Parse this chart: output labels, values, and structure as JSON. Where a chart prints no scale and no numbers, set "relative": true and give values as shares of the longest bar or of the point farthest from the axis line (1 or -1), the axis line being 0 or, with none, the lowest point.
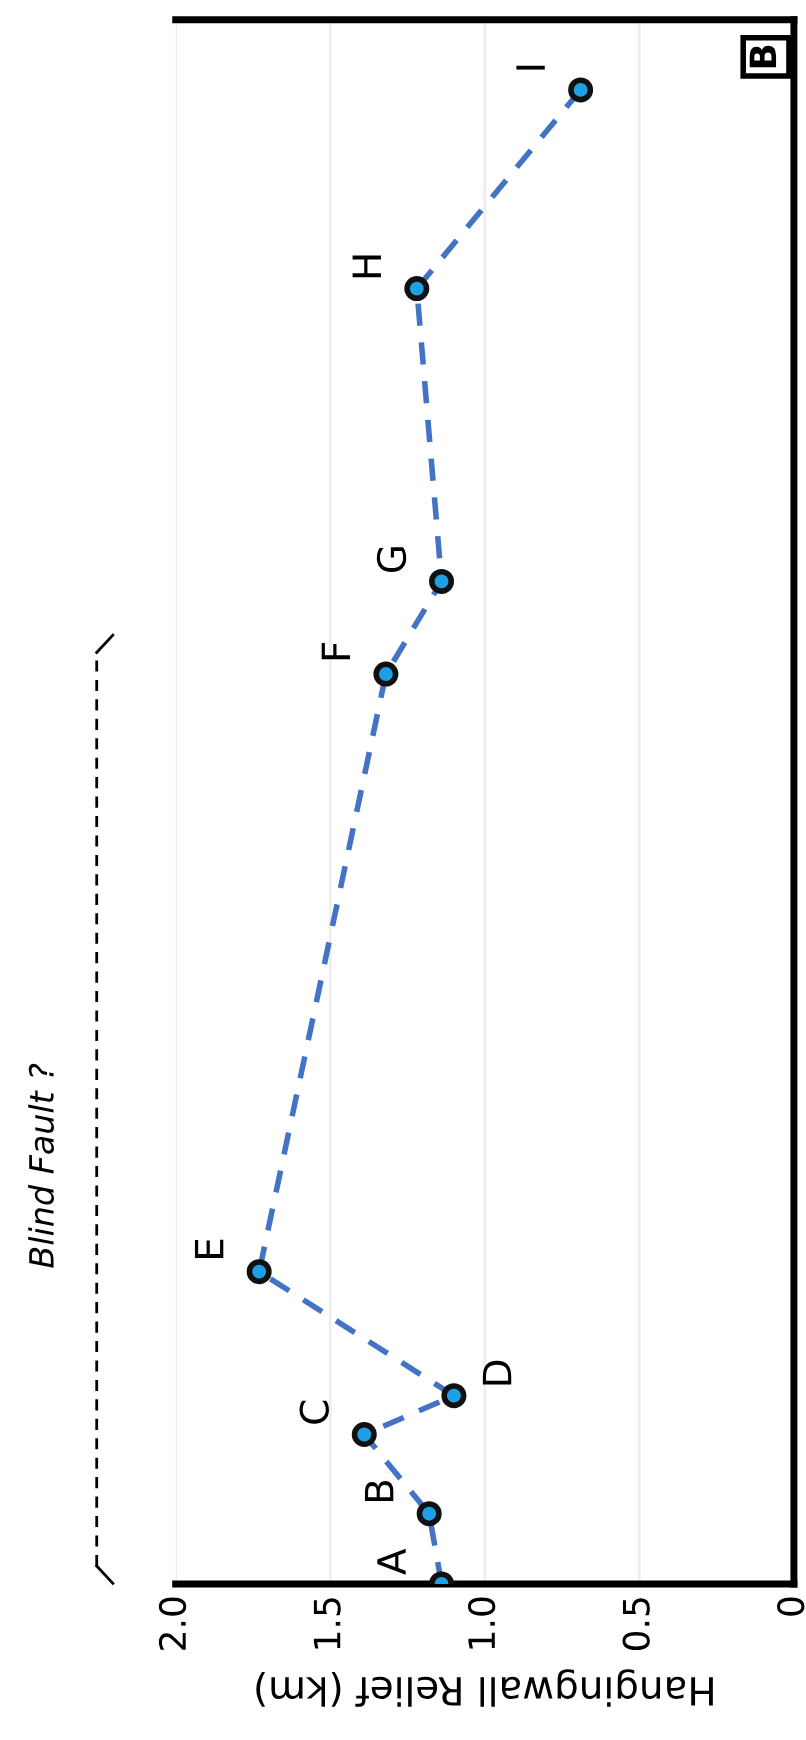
{
  "chart_data": {
    "type": "line",
    "xlabel": "Hangingwall Relief (km)",
    "series": [
      {
        "color": "#4472c4",
        "x": [
          1.14,
          1.18,
          1.39,
          1.1,
          1.73,
          1.32,
          1.14,
          1.22,
          0.69
        ],
        "values": [
          0,
          0.047,
          0.1,
          0.126,
          0.209,
          0.609,
          0.671,
          0.867,
          1
        ]
      }
    ],
    "relative": true,
    "xlim": [
      2.0,
      0
    ],
    "xticks": [
      {
        "value": 2,
        "label": "2.0"
      },
      1.5,
      {
        "value": 1,
        "label": "1.0"
      },
      0.5,
      0
    ],
    "grid": "x",
    "marker": "circle",
    "line_style": "dashed",
    "annotations": [
      {
        "text": "A",
        "x": 1.14,
        "y": 0
      },
      {
        "text": "B",
        "x": 1.18,
        "y": 0.047
      },
      {
        "text": "C",
        "x": 1.39,
        "y": 0.1
      },
      {
        "text": "D",
        "x": 1.1,
        "y": 0.126
      },
      {
        "text": "E",
        "x": 1.73,
        "y": 0.209
      },
      {
        "text": "F",
        "x": 1.32,
        "y": 0.609
      },
      {
        "text": "G",
        "x": 1.14,
        "y": 0.671
      },
      {
        "text": "H",
        "x": 1.22,
        "y": 0.867
      },
      {
        "text": "I",
        "x": 0.69,
        "y": 1
      },
      "Blind Fault ?",
      "B"
    ]
  }
}
